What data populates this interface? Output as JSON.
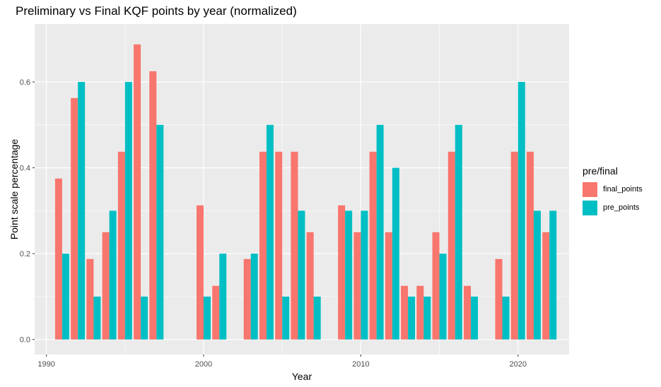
{
  "chart_data": {
    "type": "bar",
    "title": "Preliminary vs Final KQF points by year (normalized)",
    "xlabel": "Year",
    "ylabel": "Point scale percentage",
    "xlim": [
      1989.25,
      2023.25
    ],
    "ylim": [
      -0.035,
      0.735
    ],
    "x_ticks": [
      1990,
      2000,
      2010,
      2020
    ],
    "x_tick_labels": [
      "1990",
      "2000",
      "2010",
      "2020"
    ],
    "y_ticks": [
      0.0,
      0.2,
      0.4,
      0.6
    ],
    "y_tick_labels": [
      "0.0",
      "0.2",
      "0.4",
      "0.6"
    ],
    "grid": true,
    "legend": {
      "title": "pre/final",
      "position": "right"
    },
    "series": [
      {
        "name": "final_points",
        "color": "#F8766D",
        "x": [
          1991,
          1992,
          1993,
          1994,
          1995,
          1996,
          1997,
          2000,
          2001,
          2003,
          2004,
          2005,
          2006,
          2007,
          2009,
          2010,
          2011,
          2012,
          2013,
          2014,
          2015,
          2016,
          2017,
          2019,
          2020,
          2021,
          2022
        ],
        "values": [
          0.375,
          0.5625,
          0.1875,
          0.25,
          0.4375,
          0.6875,
          0.625,
          0.3125,
          0.125,
          0.1875,
          0.4375,
          0.4375,
          0.4375,
          0.25,
          0.3125,
          0.25,
          0.4375,
          0.25,
          0.125,
          0.125,
          0.25,
          0.4375,
          0.125,
          0.1875,
          0.4375,
          0.4375,
          0.25
        ]
      },
      {
        "name": "pre_points",
        "color": "#00BFC4",
        "x": [
          1991,
          1992,
          1993,
          1994,
          1995,
          1996,
          1997,
          2000,
          2001,
          2003,
          2004,
          2005,
          2006,
          2007,
          2009,
          2010,
          2011,
          2012,
          2013,
          2014,
          2015,
          2016,
          2017,
          2019,
          2020,
          2021,
          2022
        ],
        "values": [
          0.2,
          0.6,
          0.1,
          0.3,
          0.6,
          0.1,
          0.5,
          0.1,
          0.2,
          0.2,
          0.5,
          0.1,
          0.3,
          0.1,
          0.3,
          0.3,
          0.5,
          0.4,
          0.1,
          0.1,
          0.2,
          0.5,
          0.1,
          0.1,
          0.6,
          0.3,
          0.3
        ]
      }
    ]
  }
}
